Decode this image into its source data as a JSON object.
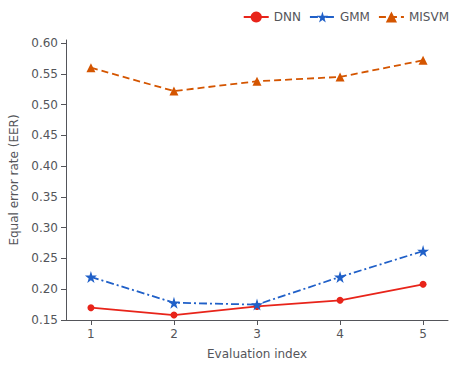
{
  "chart_data": {
    "type": "line",
    "x": [
      1,
      2,
      3,
      4,
      5
    ],
    "series": [
      {
        "name": "DNN",
        "color": "#e8241a",
        "values": [
          0.17,
          0.158,
          0.172,
          0.182,
          0.208
        ],
        "marker": "circle",
        "line_style": "solid"
      },
      {
        "name": "GMM",
        "color": "#2060c8",
        "values": [
          0.22,
          0.178,
          0.175,
          0.22,
          0.262
        ],
        "marker": "star",
        "line_style": "dashdot"
      },
      {
        "name": "MISVM",
        "color": "#d45500",
        "values": [
          0.56,
          0.522,
          0.538,
          0.545,
          0.572
        ],
        "marker": "triangle",
        "line_style": "dashed"
      }
    ],
    "xlabel": "Evaluation index",
    "ylabel": "Equal error rate (EER)",
    "xlim": [
      0.7,
      5.3
    ],
    "ylim": [
      0.15,
      0.605
    ],
    "xticks": [
      1,
      2,
      3,
      4,
      5
    ],
    "yticks": [
      0.15,
      {
        "value": 0.2,
        "label": "0.20"
      },
      0.25,
      {
        "value": 0.3,
        "label": "0.30"
      },
      0.35,
      {
        "value": 0.4,
        "label": "0.40"
      },
      0.45,
      {
        "value": 0.5,
        "label": "0.50"
      },
      0.55,
      {
        "value": 0.6,
        "label": "0.60"
      }
    ],
    "grid": false,
    "legend": "upper right"
  }
}
